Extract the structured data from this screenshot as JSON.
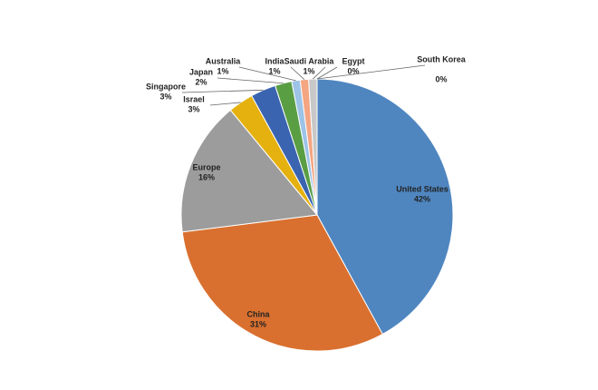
{
  "chart_data": {
    "type": "pie",
    "categories": [
      "United States",
      "China",
      "Europe",
      "Israel",
      "Singapore",
      "Japan",
      "Australia",
      "India",
      "Saudi Arabia",
      "Egypt",
      "South Korea"
    ],
    "values": [
      42,
      31,
      16,
      3,
      3,
      2,
      1,
      1,
      1,
      0,
      0
    ],
    "value_labels": [
      "42%",
      "31%",
      "16%",
      "3%",
      "3%",
      "2%",
      "1%",
      "1%",
      "1%",
      "0%",
      "0%"
    ],
    "colors": [
      "#4f86c0",
      "#d9702f",
      "#9c9c9c",
      "#e5b10f",
      "#3a64b0",
      "#5a9e44",
      "#9dc3e6",
      "#f4a582",
      "#c8c8c8",
      "#f2c46d",
      "#7ea6d8"
    ]
  }
}
